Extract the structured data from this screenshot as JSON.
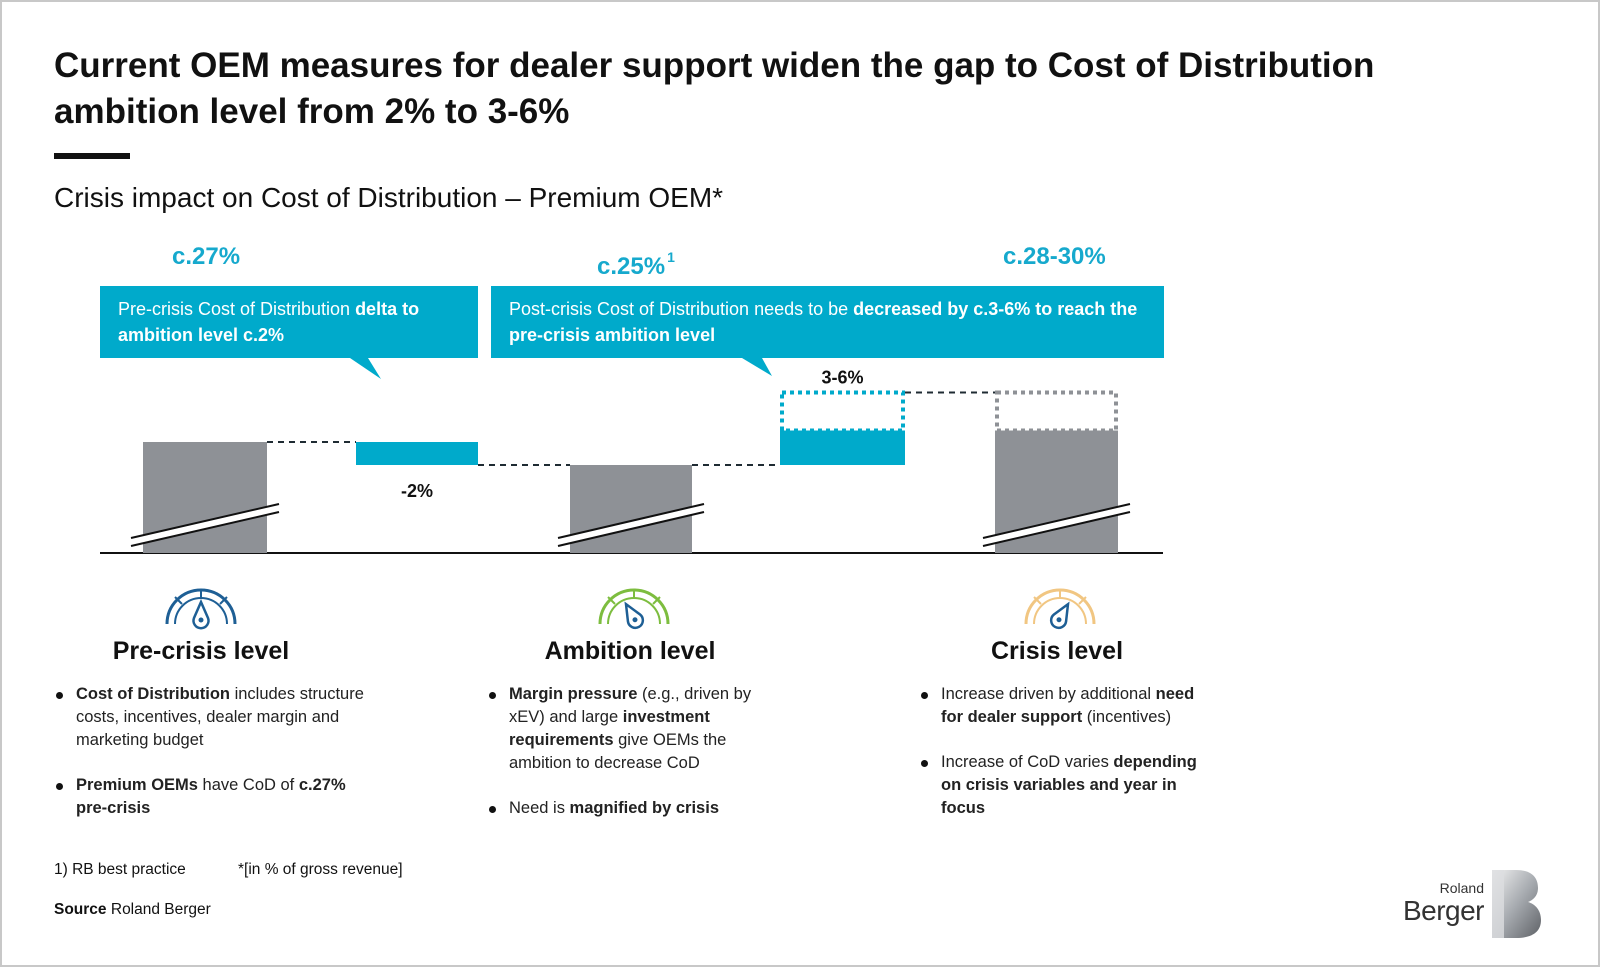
{
  "header": {
    "title": "Current OEM measures for dealer support widen the gap to Cost of Distribution ambition level from 2% to 3-6%",
    "subtitle": "Crisis impact on Cost of Distribution – Premium OEM*"
  },
  "values": {
    "pre_crisis": "c.27%",
    "ambition": "c.25%",
    "ambition_footnote_mark": "1",
    "crisis": "c.28-30%"
  },
  "callouts": {
    "left": {
      "plain": "Pre-crisis Cost of Distribution ",
      "bold": "delta to ambition level c.2%"
    },
    "right": {
      "plain": "Post-crisis Cost of Distribution needs to be ",
      "bold": "decreased by c.3-6% to reach the pre-crisis ambition level"
    }
  },
  "chart_data": {
    "type": "bar",
    "categories": [
      "Pre-crisis level",
      "",
      "Ambition level",
      "",
      "Crisis level"
    ],
    "series": [
      {
        "values": [
          27,
          -2,
          25,
          3,
          28
        ]
      }
    ],
    "data_labels": [
      "",
      "-2%",
      "",
      "3-6%",
      ""
    ],
    "colors": {
      "level_bar": "#8e9196",
      "delta_bar": "#00aacb",
      "dashed": "#1f2b33",
      "outline_crisis": "#8e9196"
    }
  },
  "categories": [
    {
      "title": "Pre-crisis level",
      "icon": "gauge-icon-blue",
      "color": "#1e5f95",
      "bullets": [
        {
          "bold": "Cost of Distribution",
          "plain": " includes structure costs, incentives, dealer margin and marketing budget",
          "lead": ""
        },
        {
          "bold": "Premium OEMs",
          "plain": " have CoD of ",
          "tail_bold": "c.27% pre-crisis",
          "lead": ""
        }
      ]
    },
    {
      "title": "Ambition level",
      "icon": "gauge-icon-green",
      "color": "#7dbd3f",
      "bullets": [
        {
          "lead": "",
          "bold": "Margin pressure",
          "plain": " (e.g., driven by xEV) and large ",
          "tail_bold": "investment requirements",
          "tail_plain": " give OEMs the ambition to decrease CoD"
        },
        {
          "lead": "Need is ",
          "bold": "magnified by crisis",
          "plain": ""
        }
      ]
    },
    {
      "title": "Crisis level",
      "icon": "gauge-icon-orange",
      "color": "#f1c682",
      "bullets": [
        {
          "lead": "Increase driven by additional ",
          "bold": "need for dealer support",
          "plain": " (incentives)"
        },
        {
          "lead": "Increase of CoD varies ",
          "bold": "depending on crisis variables and year in focus",
          "plain": ""
        }
      ]
    }
  ],
  "footnotes": {
    "note1": "1) RB best practice",
    "note2": "*[in % of gross revenue]",
    "source_label": "Source",
    "source_text": " Roland Berger"
  },
  "logo": {
    "line1": "Roland",
    "line2": "Berger"
  }
}
